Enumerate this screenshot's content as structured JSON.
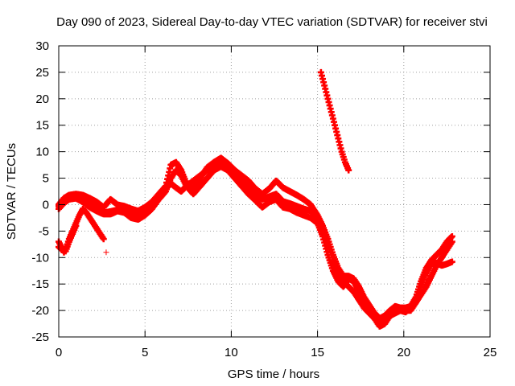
{
  "chart_data": {
    "type": "scatter",
    "title": "Day 090 of 2023, Sidereal Day-to-day VTEC variation (SDTVAR) for receiver stvi",
    "xlabel": "GPS time / hours",
    "ylabel": "SDTVAR / TECUs",
    "xlim": [
      0,
      25
    ],
    "ylim": [
      -25,
      30
    ],
    "x_ticks": [
      0,
      5,
      10,
      15,
      20,
      25
    ],
    "y_ticks": [
      -25,
      -20,
      -15,
      -10,
      -5,
      0,
      5,
      10,
      15,
      20,
      25,
      30
    ],
    "grid": true,
    "marker": "+",
    "series_color": "#ff0000",
    "series": [
      {
        "name": "s1",
        "x": [
          0,
          0.3,
          0.6,
          1.0,
          1.4,
          1.8,
          2.2,
          2.6,
          3.0,
          3.4,
          3.8,
          4.2,
          4.6,
          5.0,
          5.4,
          5.8,
          6.2,
          6.5,
          6.8,
          7.1,
          7.4,
          7.8,
          8.2,
          8.6,
          9.0,
          9.4,
          9.8,
          10.2,
          10.6,
          11.0,
          11.4,
          11.8,
          12.2,
          12.6,
          13.0,
          13.4,
          13.8,
          14.2,
          14.6,
          15.0,
          15.3,
          15.6,
          15.9,
          16.2,
          16.5,
          16.8,
          17.1,
          17.4,
          17.7,
          18.0,
          18.3,
          18.6,
          18.9,
          19.2,
          19.5,
          19.8,
          20.1,
          20.4,
          20.7,
          21.0,
          21.3,
          21.6,
          21.9,
          22.2,
          22.5,
          22.8
        ],
        "y": [
          -0.3,
          0.8,
          1.5,
          1.8,
          1.5,
          0.5,
          -0.8,
          -1.5,
          -1.3,
          -1.0,
          -0.8,
          -1.5,
          -2.0,
          -1.5,
          -0.3,
          1.5,
          3.0,
          4.0,
          3.2,
          2.5,
          3.5,
          4.5,
          5.5,
          6.5,
          7.2,
          7.8,
          7.3,
          6.0,
          4.5,
          3.2,
          2.0,
          1.0,
          1.5,
          2.0,
          0.6,
          0.2,
          -0.3,
          -0.8,
          -1.2,
          -2.5,
          -4.5,
          -7.5,
          -10.5,
          -13.0,
          -14.5,
          -15.5,
          -16.5,
          -18.0,
          -19.5,
          -20.5,
          -21.5,
          -22.3,
          -22.0,
          -21.0,
          -20.5,
          -20.0,
          -20.3,
          -19.5,
          -18.5,
          -17.0,
          -15.5,
          -13.5,
          -11.5,
          -10.0,
          -8.5,
          -7.0
        ]
      },
      {
        "name": "s2",
        "x": [
          0,
          0.3,
          0.6,
          1.0,
          1.4,
          1.8,
          2.2,
          2.6,
          3.0,
          3.4,
          3.8,
          4.2,
          4.6,
          5.0,
          5.4,
          5.8,
          6.2,
          6.5,
          6.8,
          7.1,
          7.4,
          7.8,
          8.2,
          8.6,
          9.0,
          9.4,
          9.8,
          10.2,
          10.6,
          11.0,
          11.4,
          11.8,
          12.2,
          12.6,
          13.0,
          13.4,
          13.8,
          14.2,
          14.6,
          15.0,
          15.3,
          15.6,
          15.9,
          16.2,
          16.5,
          16.8,
          17.1,
          17.4,
          17.7,
          18.0,
          18.3,
          18.6,
          18.9,
          19.2,
          19.5,
          19.8,
          20.1,
          20.4,
          20.7,
          21.0,
          21.3,
          21.6,
          21.9,
          22.2,
          22.5,
          22.8
        ],
        "y": [
          -0.8,
          0.3,
          1.0,
          1.2,
          0.5,
          -0.5,
          -1.2,
          -1.8,
          -1.8,
          -1.2,
          -1.5,
          -2.5,
          -2.8,
          -2.0,
          -0.8,
          1.0,
          2.5,
          5.0,
          6.5,
          5.5,
          3.5,
          2.0,
          3.5,
          5.0,
          6.5,
          7.2,
          6.5,
          5.0,
          3.5,
          2.0,
          0.8,
          -0.5,
          0.5,
          1.0,
          -0.5,
          -0.8,
          -1.5,
          -2.0,
          -2.5,
          -3.5,
          -6.0,
          -9.5,
          -12.5,
          -14.5,
          -15.5,
          -14.0,
          -14.5,
          -16.5,
          -18.5,
          -20.0,
          -21.5,
          -23.0,
          -22.5,
          -21.0,
          -20.3,
          -19.5,
          -20.0,
          -20.0,
          -18.5,
          -15.5,
          -13.0,
          -11.0,
          -11.0,
          -11.5,
          -11.2,
          -10.8
        ]
      },
      {
        "name": "s3",
        "x": [
          0,
          0.3,
          0.6,
          1.0,
          1.4,
          1.8,
          2.2,
          2.6,
          3.0,
          3.4,
          3.8,
          4.2,
          4.6,
          5.0,
          5.4,
          5.8,
          6.2,
          6.5,
          6.8,
          7.1,
          7.4,
          7.8,
          8.2,
          8.6,
          9.0,
          9.4,
          9.8,
          10.2,
          10.6,
          11.0,
          11.4,
          11.8,
          12.2,
          12.6,
          13.0,
          13.4,
          13.8,
          14.2,
          14.6,
          15.0,
          15.3,
          15.6,
          15.9,
          16.2,
          16.5,
          16.8,
          17.1,
          17.4,
          17.7,
          18.0,
          18.3,
          18.6,
          18.9,
          19.2,
          19.5,
          19.8,
          20.1,
          20.4,
          20.7,
          21.0,
          21.3,
          21.6,
          21.9,
          22.2,
          22.5,
          22.8
        ],
        "y": [
          0.0,
          1.2,
          1.8,
          2.0,
          1.8,
          1.2,
          0.5,
          -0.5,
          1.0,
          0.0,
          -0.3,
          -0.8,
          -1.2,
          -0.5,
          0.5,
          2.0,
          3.5,
          7.5,
          8.0,
          6.5,
          4.0,
          3.0,
          5.0,
          7.0,
          8.0,
          8.8,
          7.8,
          6.5,
          5.5,
          4.5,
          3.0,
          2.0,
          3.0,
          4.5,
          3.2,
          2.5,
          1.8,
          1.0,
          0.0,
          -2.0,
          -4.0,
          -6.5,
          -9.5,
          -12.0,
          -13.5,
          -13.5,
          -14.0,
          -15.5,
          -17.5,
          -19.0,
          -20.5,
          -21.5,
          -21.0,
          -20.0,
          -19.2,
          -19.5,
          -19.5,
          -19.2,
          -17.5,
          -14.5,
          -12.0,
          -10.5,
          -9.5,
          -8.5,
          -7.0,
          -6.0
        ]
      },
      {
        "name": "s4",
        "x": [
          0,
          0.15,
          0.3,
          0.45,
          0.6,
          0.8,
          1.0,
          1.2,
          1.4,
          1.6,
          1.8,
          2.0,
          2.2,
          2.4,
          2.6
        ],
        "y": [
          -7.0,
          -8.0,
          -9.0,
          -8.0,
          -6.5,
          -5.0,
          -3.5,
          -2.0,
          -0.8,
          -1.5,
          -2.5,
          -3.5,
          -4.5,
          -5.5,
          -6.5
        ]
      },
      {
        "name": "s5",
        "x": [
          0,
          0.2,
          0.4,
          0.6,
          0.8,
          1.0
        ],
        "y": [
          -8.0,
          -8.5,
          -8.8,
          -7.0,
          -5.5,
          -4.0
        ]
      },
      {
        "name": "s6",
        "x": [
          15.2,
          15.4,
          15.6,
          15.8,
          16.0,
          16.2,
          16.4,
          16.6,
          16.8
        ],
        "y": [
          25.0,
          22.5,
          20.0,
          17.5,
          15.0,
          12.5,
          10.0,
          8.0,
          6.5
        ]
      },
      {
        "name": "s7",
        "x": [
          2.75
        ],
        "y": [
          -9.0
        ]
      }
    ]
  }
}
